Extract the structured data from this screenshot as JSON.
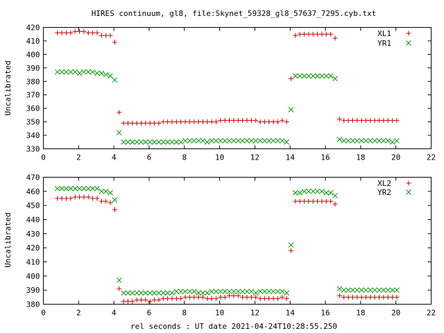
{
  "chart_data": {
    "title": "HIRES continuum, gl8, file:Skynet_59328_gl8_57637_7295.cyb.txt",
    "xlabel": "rel seconds : UT date 2021-04-24T10:28:55.250",
    "colors": {
      "plus": "#cc0000",
      "cross": "#009900"
    },
    "panels": [
      {
        "type": "scatter",
        "ylabel": "Uncalibrated",
        "xlim": [
          0,
          22
        ],
        "ylim": [
          330,
          420
        ],
        "xticks": [
          0,
          2,
          4,
          6,
          8,
          10,
          12,
          14,
          16,
          18,
          20,
          22
        ],
        "yticks": [
          330,
          340,
          350,
          360,
          370,
          380,
          390,
          400,
          410,
          420
        ],
        "legend_position": "top-right",
        "series": [
          {
            "name": "XL1",
            "marker": "plus",
            "x": [
              0.8,
              1.05,
              1.3,
              1.55,
              1.8,
              2.05,
              2.3,
              2.55,
              2.8,
              3.05,
              3.3,
              3.55,
              3.8,
              4.05,
              4.3,
              4.55,
              4.8,
              5.05,
              5.3,
              5.55,
              5.8,
              6.05,
              6.3,
              6.55,
              6.8,
              7.05,
              7.3,
              7.55,
              7.8,
              8.05,
              8.3,
              8.55,
              8.8,
              9.05,
              9.3,
              9.55,
              9.8,
              10.05,
              10.3,
              10.55,
              10.8,
              11.05,
              11.3,
              11.55,
              11.8,
              12.05,
              12.3,
              12.55,
              12.8,
              13.05,
              13.3,
              13.55,
              13.8,
              14.05,
              14.3,
              14.55,
              14.8,
              15.05,
              15.3,
              15.55,
              15.8,
              16.05,
              16.3,
              16.55,
              16.8,
              17.05,
              17.3,
              17.55,
              17.8,
              18.05,
              18.3,
              18.55,
              18.8,
              19.05,
              19.3,
              19.55,
              19.8,
              20.05
            ],
            "y": [
              416,
              416,
              416,
              416,
              417,
              417,
              417,
              416,
              416,
              416,
              414,
              414,
              414,
              409,
              357,
              349,
              349,
              349,
              349,
              349,
              349,
              349,
              349,
              349,
              350,
              350,
              350,
              350,
              350,
              350,
              350,
              350,
              350,
              350,
              350,
              350,
              350,
              351,
              351,
              351,
              351,
              351,
              351,
              351,
              351,
              351,
              350,
              350,
              350,
              350,
              350,
              351,
              350,
              382,
              414,
              415,
              415,
              415,
              415,
              415,
              415,
              415,
              415,
              412,
              352,
              351,
              351,
              351,
              351,
              351,
              351,
              351,
              351,
              351,
              351,
              351,
              351,
              351
            ]
          },
          {
            "name": "YR1",
            "marker": "cross",
            "x": [
              0.8,
              1.05,
              1.3,
              1.55,
              1.8,
              2.05,
              2.3,
              2.55,
              2.8,
              3.05,
              3.3,
              3.55,
              3.8,
              4.05,
              4.3,
              4.55,
              4.8,
              5.05,
              5.3,
              5.55,
              5.8,
              6.05,
              6.3,
              6.55,
              6.8,
              7.05,
              7.3,
              7.55,
              7.8,
              8.05,
              8.3,
              8.55,
              8.8,
              9.05,
              9.3,
              9.55,
              9.8,
              10.05,
              10.3,
              10.55,
              10.8,
              11.05,
              11.3,
              11.55,
              11.8,
              12.05,
              12.3,
              12.55,
              12.8,
              13.05,
              13.3,
              13.55,
              13.8,
              14.05,
              14.3,
              14.55,
              14.8,
              15.05,
              15.3,
              15.55,
              15.8,
              16.05,
              16.3,
              16.55,
              16.8,
              17.05,
              17.3,
              17.55,
              17.8,
              18.05,
              18.3,
              18.55,
              18.8,
              19.05,
              19.3,
              19.55,
              19.8,
              20.05
            ],
            "y": [
              387,
              387,
              387,
              387,
              387,
              386,
              387,
              387,
              387,
              386,
              386,
              385,
              384,
              381,
              342,
              335,
              335,
              335,
              335,
              335,
              335,
              335,
              335,
              335,
              335,
              335,
              335,
              335,
              335,
              336,
              336,
              336,
              336,
              336,
              335,
              336,
              336,
              336,
              336,
              336,
              336,
              336,
              336,
              336,
              336,
              336,
              336,
              336,
              336,
              336,
              336,
              336,
              335,
              359,
              384,
              384,
              384,
              384,
              384,
              384,
              384,
              384,
              384,
              382,
              337,
              336,
              336,
              336,
              336,
              336,
              336,
              336,
              336,
              336,
              336,
              336,
              335,
              336
            ]
          }
        ]
      },
      {
        "type": "scatter",
        "ylabel": "Uncalibrated",
        "xlim": [
          0,
          22
        ],
        "ylim": [
          380,
          470
        ],
        "xticks": [
          0,
          2,
          4,
          6,
          8,
          10,
          12,
          14,
          16,
          18,
          20,
          22
        ],
        "yticks": [
          380,
          390,
          400,
          410,
          420,
          430,
          440,
          450,
          460,
          470
        ],
        "legend_position": "top-right",
        "series": [
          {
            "name": "XL2",
            "marker": "plus",
            "x": [
              0.8,
              1.05,
              1.3,
              1.55,
              1.8,
              2.05,
              2.3,
              2.55,
              2.8,
              3.05,
              3.3,
              3.55,
              3.8,
              4.05,
              4.3,
              4.55,
              4.8,
              5.05,
              5.3,
              5.55,
              5.8,
              6.05,
              6.3,
              6.55,
              6.8,
              7.05,
              7.3,
              7.55,
              7.8,
              8.05,
              8.3,
              8.55,
              8.8,
              9.05,
              9.3,
              9.55,
              9.8,
              10.05,
              10.3,
              10.55,
              10.8,
              11.05,
              11.3,
              11.55,
              11.8,
              12.05,
              12.3,
              12.55,
              12.8,
              13.05,
              13.3,
              13.55,
              13.8,
              14.05,
              14.3,
              14.55,
              14.8,
              15.05,
              15.3,
              15.55,
              15.8,
              16.05,
              16.3,
              16.55,
              16.8,
              17.05,
              17.3,
              17.55,
              17.8,
              18.05,
              18.3,
              18.55,
              18.8,
              19.05,
              19.3,
              19.55,
              19.8,
              20.05
            ],
            "y": [
              455,
              455,
              455,
              455,
              456,
              456,
              456,
              456,
              455,
              455,
              453,
              453,
              452,
              447,
              391,
              382,
              382,
              382,
              383,
              383,
              383,
              382,
              383,
              383,
              384,
              384,
              384,
              384,
              384,
              385,
              385,
              385,
              385,
              385,
              384,
              384,
              384,
              385,
              385,
              386,
              386,
              386,
              385,
              385,
              385,
              385,
              384,
              384,
              384,
              384,
              384,
              385,
              384,
              418,
              453,
              453,
              453,
              453,
              453,
              453,
              453,
              453,
              453,
              451,
              386,
              385,
              385,
              385,
              385,
              385,
              385,
              385,
              385,
              385,
              385,
              385,
              385,
              385
            ]
          },
          {
            "name": "YR2",
            "marker": "cross",
            "x": [
              0.8,
              1.05,
              1.3,
              1.55,
              1.8,
              2.05,
              2.3,
              2.55,
              2.8,
              3.05,
              3.3,
              3.55,
              3.8,
              4.05,
              4.3,
              4.55,
              4.8,
              5.05,
              5.3,
              5.55,
              5.8,
              6.05,
              6.3,
              6.55,
              6.8,
              7.05,
              7.3,
              7.55,
              7.8,
              8.05,
              8.3,
              8.55,
              8.8,
              9.05,
              9.3,
              9.55,
              9.8,
              10.05,
              10.3,
              10.55,
              10.8,
              11.05,
              11.3,
              11.55,
              11.8,
              12.05,
              12.3,
              12.55,
              12.8,
              13.05,
              13.3,
              13.55,
              13.8,
              14.05,
              14.3,
              14.55,
              14.8,
              15.05,
              15.3,
              15.55,
              15.8,
              16.05,
              16.3,
              16.55,
              16.8,
              17.05,
              17.3,
              17.55,
              17.8,
              18.05,
              18.3,
              18.55,
              18.8,
              19.05,
              19.3,
              19.55,
              19.8,
              20.05
            ],
            "y": [
              462,
              462,
              462,
              462,
              462,
              462,
              462,
              462,
              462,
              462,
              460,
              460,
              459,
              454,
              397,
              388,
              388,
              388,
              388,
              388,
              388,
              388,
              388,
              388,
              388,
              388,
              388,
              389,
              389,
              389,
              389,
              389,
              388,
              388,
              388,
              389,
              389,
              389,
              389,
              389,
              389,
              389,
              389,
              389,
              389,
              388,
              389,
              389,
              389,
              389,
              389,
              389,
              388,
              422,
              459,
              459,
              460,
              460,
              460,
              460,
              460,
              459,
              459,
              457,
              391,
              390,
              390,
              390,
              390,
              390,
              390,
              390,
              390,
              390,
              390,
              390,
              390,
              390
            ]
          }
        ]
      }
    ]
  }
}
